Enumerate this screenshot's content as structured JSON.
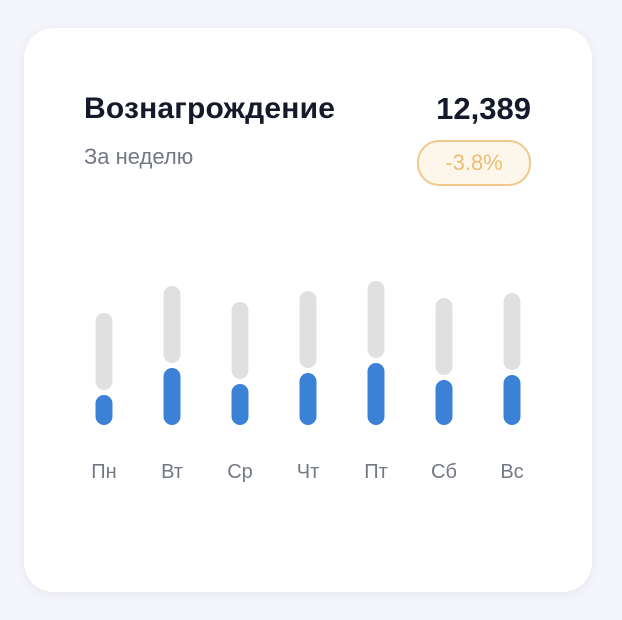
{
  "header": {
    "title": "Вознагрождение",
    "subtitle": "За неделю",
    "total": "12,389",
    "change": "-3.8%"
  },
  "colors": {
    "active": "#3b82d6",
    "track": "#e0e0e0",
    "badge_text": "#edbe76",
    "badge_border": "#f0c98a"
  },
  "chart_data": {
    "type": "bar",
    "categories": [
      "Пн",
      "Вт",
      "Ср",
      "Чт",
      "Пт",
      "Сб",
      "Вс"
    ],
    "series": [
      {
        "values": [
          30,
          57,
          41,
          52,
          62,
          45,
          50
        ]
      }
    ],
    "track_value": 77,
    "grid": false,
    "legend": "none"
  }
}
